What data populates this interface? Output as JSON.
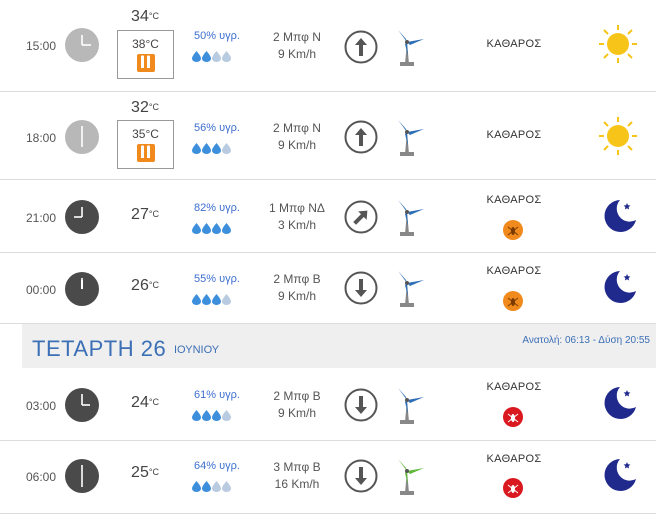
{
  "rows": [
    {
      "time": "15:00",
      "temp": "34",
      "feels": "38°C",
      "humidity": "50% υγρ.",
      "drops": 2,
      "wind_force": "2 Μπφ Ν",
      "wind_speed": "9 Km/h",
      "arrow": "up-arrow-icon",
      "condition": "ΚΑΘΑΡΟΣ",
      "weather": "sun-icon"
    },
    {
      "time": "18:00",
      "temp": "32",
      "feels": "35°C",
      "humidity": "56% υγρ.",
      "drops": 3,
      "wind_force": "2 Μπφ Ν",
      "wind_speed": "9 Km/h",
      "arrow": "up-arrow-icon",
      "condition": "ΚΑΘΑΡΟΣ",
      "weather": "sun-icon"
    },
    {
      "time": "21:00",
      "temp": "27",
      "humidity": "82% υγρ.",
      "drops": 4,
      "wind_force": "1 Μπφ ΝΔ",
      "wind_speed": "3 Km/h",
      "arrow": "up-right-arrow-icon",
      "condition": "ΚΑΘΑΡΟΣ",
      "badge": "mosquito-orange",
      "weather": "moon-icon"
    },
    {
      "time": "00:00",
      "temp": "26",
      "humidity": "55% υγρ.",
      "drops": 3,
      "wind_force": "2 Μπφ Β",
      "wind_speed": "9 Km/h",
      "arrow": "down-arrow-icon",
      "condition": "ΚΑΘΑΡΟΣ",
      "badge": "mosquito-orange",
      "weather": "moon-icon"
    },
    {
      "time": "03:00",
      "temp": "24",
      "humidity": "61% υγρ.",
      "drops": 3,
      "wind_force": "2 Μπφ Β",
      "wind_speed": "9 Km/h",
      "arrow": "down-arrow-icon",
      "condition": "ΚΑΘΑΡΟΣ",
      "badge": "mosquito-red",
      "weather": "moon-icon"
    },
    {
      "time": "06:00",
      "temp": "25",
      "humidity": "64% υγρ.",
      "drops": 2,
      "wind_force": "3 Μπφ Β",
      "wind_speed": "16 Km/h",
      "arrow": "down-arrow-icon",
      "condition": "ΚΑΘΑΡΟΣ",
      "badge": "mosquito-red",
      "weather": "moon-icon"
    }
  ],
  "day_header": {
    "day": "ΤΕΤΑΡΤΗ 26",
    "month": "ΙΟΥΝΙΟΥ",
    "sun": "Ανατολή: 06:13 - Δύση 20:55"
  },
  "units": {
    "celsius": "°C"
  },
  "colors": {
    "accent": "#3b6fb6",
    "drop_full": "#3d8fdc",
    "drop_empty": "#b8cbe0",
    "feels_badge": "#f08a1c",
    "badge_orange": "#f08a1c",
    "badge_red": "#d9181f",
    "moon": "#1f2a8c",
    "sun": "#f7c51a"
  }
}
